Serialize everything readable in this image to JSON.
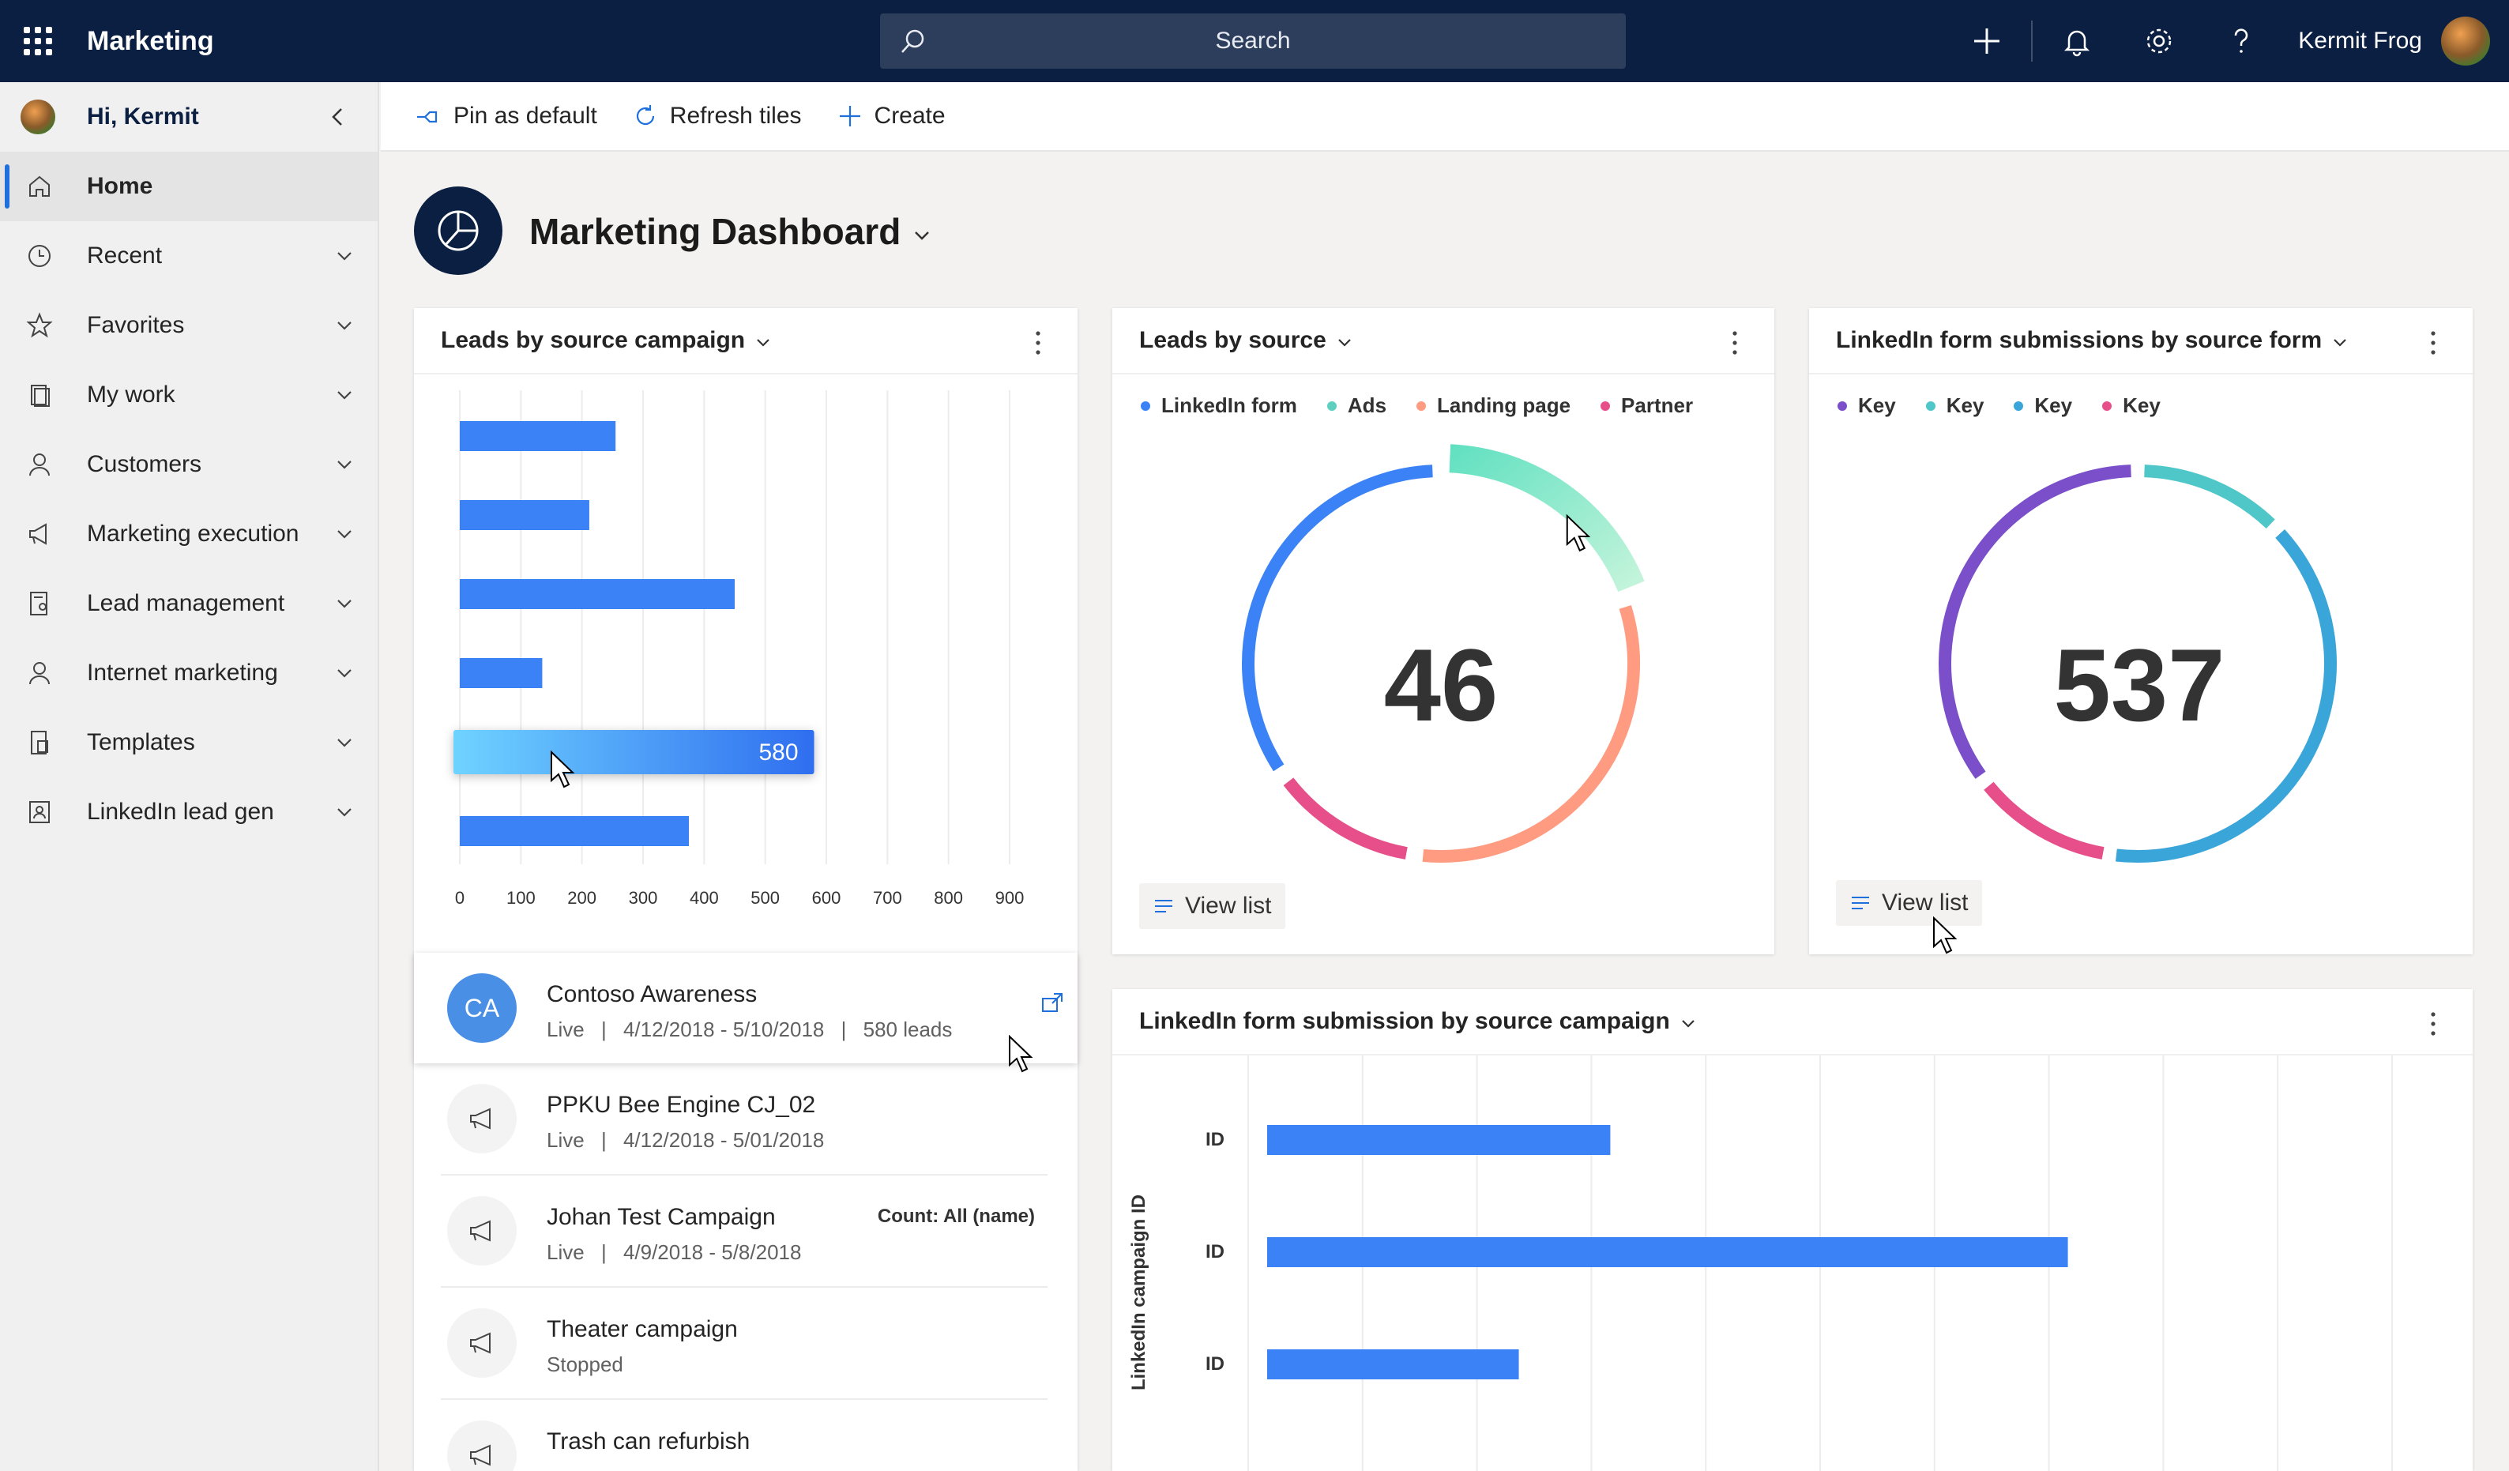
{
  "app": {
    "title": "Marketing"
  },
  "search": {
    "placeholder": "Search"
  },
  "topbar": {
    "user_name": "Kermit Frog"
  },
  "sidebar": {
    "greeting": "Hi, Kermit",
    "items": [
      {
        "label": "Home",
        "icon": "home-icon"
      },
      {
        "label": "Recent",
        "icon": "clock-icon"
      },
      {
        "label": "Favorites",
        "icon": "star-icon"
      },
      {
        "label": "My work",
        "icon": "clipboard-icon"
      },
      {
        "label": "Customers",
        "icon": "person-icon"
      },
      {
        "label": "Marketing execution",
        "icon": "megaphone-icon"
      },
      {
        "label": "Lead management",
        "icon": "document-person-icon"
      },
      {
        "label": "Internet marketing",
        "icon": "person-icon"
      },
      {
        "label": "Templates",
        "icon": "templates-icon"
      },
      {
        "label": "LinkedIn lead gen",
        "icon": "contact-card-icon"
      }
    ]
  },
  "commands": {
    "pin": "Pin as default",
    "refresh": "Refresh tiles",
    "create": "Create"
  },
  "dashboard": {
    "title": "Marketing Dashboard"
  },
  "cards": {
    "leads_campaign": {
      "title": "Leads by source campaign",
      "footer": "Count: All (name)"
    },
    "leads_source": {
      "title": "Leads by source",
      "value": "46",
      "view_list": "View list",
      "legend": [
        {
          "label": "LinkedIn form",
          "color": "#3b82f6"
        },
        {
          "label": "Ads",
          "color": "#5fd0c0"
        },
        {
          "label": "Landing page",
          "color": "#ff9b80"
        },
        {
          "label": "Partner",
          "color": "#e64f8a"
        }
      ]
    },
    "linkedin_form": {
      "title": "LinkedIn form submissions by source form",
      "value": "537",
      "view_list": "View list",
      "legend": [
        {
          "label": "Key",
          "color": "#7a4fc9"
        },
        {
          "label": "Key",
          "color": "#4fc6c8"
        },
        {
          "label": "Key",
          "color": "#3aa5d8"
        },
        {
          "label": "Key",
          "color": "#e64f8a"
        }
      ]
    },
    "linkedin_campaign": {
      "title": "LinkedIn form submission by source campaign",
      "ylabel": "LinkedIn campaign ID"
    }
  },
  "campaigns": [
    {
      "initials": "CA",
      "title": "Contoso Awareness",
      "status": "Live",
      "dates": "4/12/2018 - 5/10/2018",
      "leads": "580 leads"
    },
    {
      "title": "PPKU Bee Engine CJ_02",
      "status": "Live",
      "dates": "4/12/2018 - 5/01/2018"
    },
    {
      "title": "Johan Test Campaign",
      "status": "Live",
      "dates": "4/9/2018 - 5/8/2018"
    },
    {
      "title": "Theater campaign",
      "status": "Stopped"
    },
    {
      "title": "Trash can refurbish"
    }
  ],
  "chart_data": [
    {
      "type": "bar",
      "title": "Leads by source campaign",
      "orientation": "horizontal",
      "categories": [
        "",
        "",
        "",
        "",
        "",
        ""
      ],
      "values": [
        255,
        212,
        450,
        135,
        580,
        375
      ],
      "data_labels": [
        "",
        "",
        "",
        "",
        "580",
        ""
      ],
      "xticks": [
        "0",
        "100",
        "200",
        "300",
        "400",
        "500",
        "600",
        "700",
        "800",
        "900"
      ],
      "xlim": [
        0,
        900
      ],
      "xlabel": "Count: All (name)",
      "grid": true
    },
    {
      "type": "pie",
      "title": "Leads by source",
      "center_label": "46",
      "series": [
        {
          "name": "LinkedIn form",
          "value": 16
        },
        {
          "name": "Ads",
          "value": 9
        },
        {
          "name": "Landing page",
          "value": 15
        },
        {
          "name": "Partner",
          "value": 6
        }
      ]
    },
    {
      "type": "pie",
      "title": "LinkedIn form submissions by source form",
      "center_label": "537",
      "series": [
        {
          "name": "Key",
          "value": 190
        },
        {
          "name": "Key",
          "value": 68
        },
        {
          "name": "Key",
          "value": 213
        },
        {
          "name": "Key",
          "value": 66
        }
      ]
    },
    {
      "type": "bar",
      "title": "LinkedIn form submission by source campaign",
      "orientation": "horizontal",
      "categories": [
        "ID",
        "ID",
        "ID"
      ],
      "values": [
        30,
        70,
        22
      ],
      "ylabel": "LinkedIn campaign ID",
      "grid": true
    }
  ]
}
